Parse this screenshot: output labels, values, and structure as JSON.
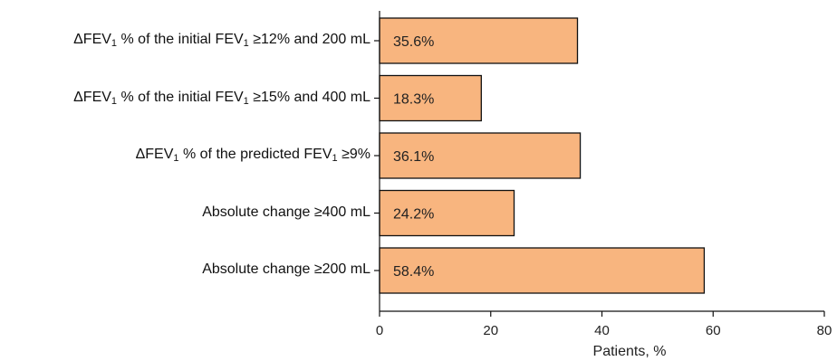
{
  "chart_data": {
    "type": "bar",
    "orientation": "horizontal",
    "categories": [
      {
        "parts": [
          {
            "t": "ΔFEV"
          },
          {
            "sub": "1"
          },
          {
            "t": " % of the initial FEV"
          },
          {
            "sub": "1"
          },
          {
            "t": " ≥12% and 200 mL"
          }
        ]
      },
      {
        "parts": [
          {
            "t": "ΔFEV"
          },
          {
            "sub": "1"
          },
          {
            "t": " % of the initial FEV"
          },
          {
            "sub": "1"
          },
          {
            "t": " ≥15% and 400 mL"
          }
        ]
      },
      {
        "parts": [
          {
            "t": "ΔFEV"
          },
          {
            "sub": "1"
          },
          {
            "t": " % of the predicted FEV"
          },
          {
            "sub": "1"
          },
          {
            "t": " ≥9%"
          }
        ]
      },
      {
        "parts": [
          {
            "t": "Absolute change ≥400 mL"
          }
        ]
      },
      {
        "parts": [
          {
            "t": "Absolute change ≥200 mL"
          }
        ]
      }
    ],
    "values": [
      35.6,
      18.3,
      36.1,
      24.2,
      58.4
    ],
    "value_labels": [
      "35.6%",
      "18.3%",
      "36.1%",
      "24.2%",
      "58.4%"
    ],
    "xlabel": "Patients, %",
    "xlim": [
      0,
      80
    ],
    "xticks": [
      0,
      20,
      40,
      60,
      80
    ],
    "grid": false,
    "bar_color": "#f8b57f",
    "bar_edge_color": "#111111"
  }
}
